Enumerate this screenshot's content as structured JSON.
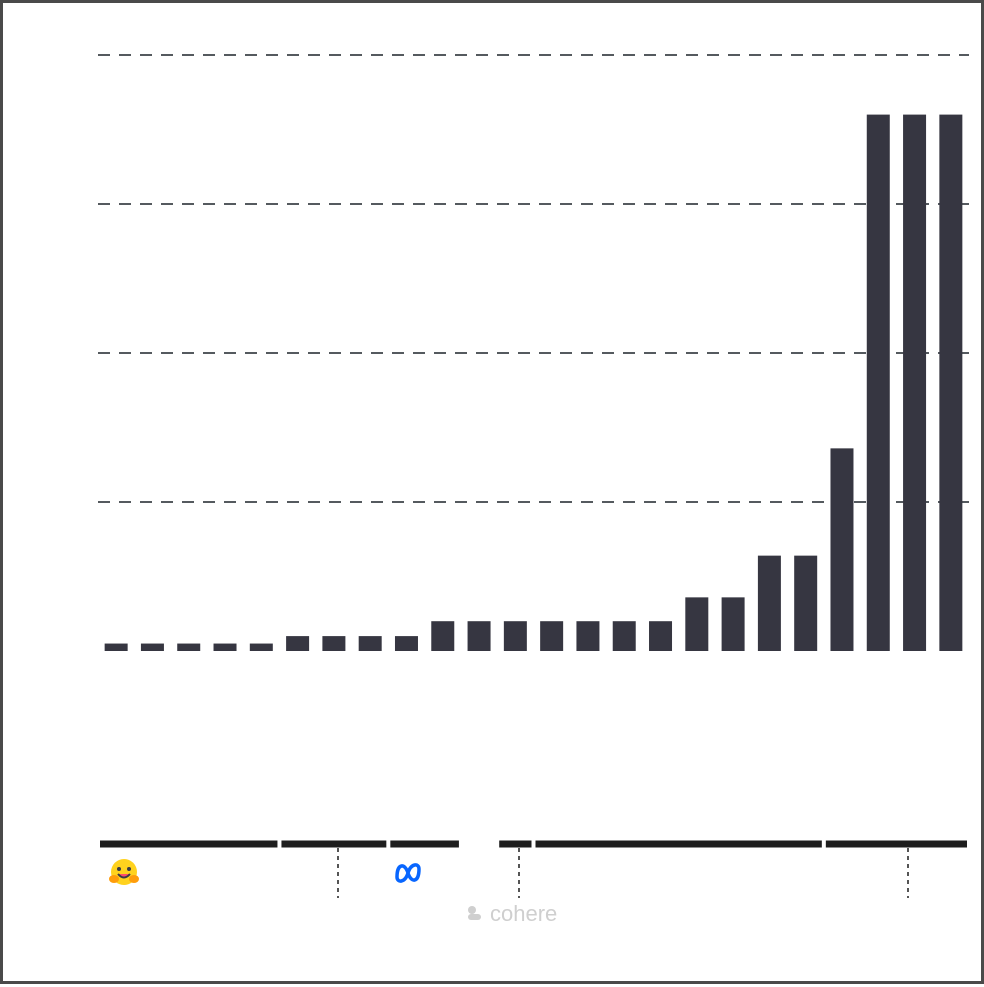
{
  "colors": {
    "bar": "#363641",
    "grid": "#555a5f",
    "group_line": "#1e1e1e",
    "hugging_face_logo": "#FFD21E",
    "meta_logo": "#0866FF",
    "cohere_logo": "#cfcfcf"
  },
  "logos": {
    "hugging_face": "hugging-face-icon",
    "meta": "meta-icon",
    "cohere": "cohere"
  },
  "chart_data": {
    "type": "bar",
    "title": "",
    "xlabel": "",
    "ylabel": "",
    "grid": true,
    "ylim": [
      0,
      3.9
    ],
    "gridlines": [
      1,
      2,
      3,
      4
    ],
    "categories": [
      "",
      "",
      "",
      "",
      "",
      "",
      "",
      "",
      "",
      "",
      "",
      "",
      "",
      "",
      "",
      "",
      "",
      "",
      "",
      "",
      "",
      "",
      "",
      ""
    ],
    "values": [
      0.05,
      0.05,
      0.05,
      0.05,
      0.05,
      0.1,
      0.1,
      0.1,
      0.1,
      0.2,
      0.2,
      0.2,
      0.2,
      0.2,
      0.2,
      0.2,
      0.36,
      0.36,
      0.64,
      0.64,
      1.36,
      3.6,
      3.6,
      3.6
    ],
    "groups": [
      {
        "logo": "hugging-face-icon",
        "start": 0,
        "end": 4
      },
      {
        "logo": "",
        "start": 5,
        "end": 7
      },
      {
        "logo": "meta-icon",
        "start": 8,
        "end": 9
      },
      {
        "logo": "",
        "start": 11,
        "end": 11
      },
      {
        "logo": "",
        "start": 12,
        "end": 19
      },
      {
        "logo": "",
        "start": 20,
        "end": 23
      }
    ],
    "bottom_wordmark": "cohere"
  }
}
